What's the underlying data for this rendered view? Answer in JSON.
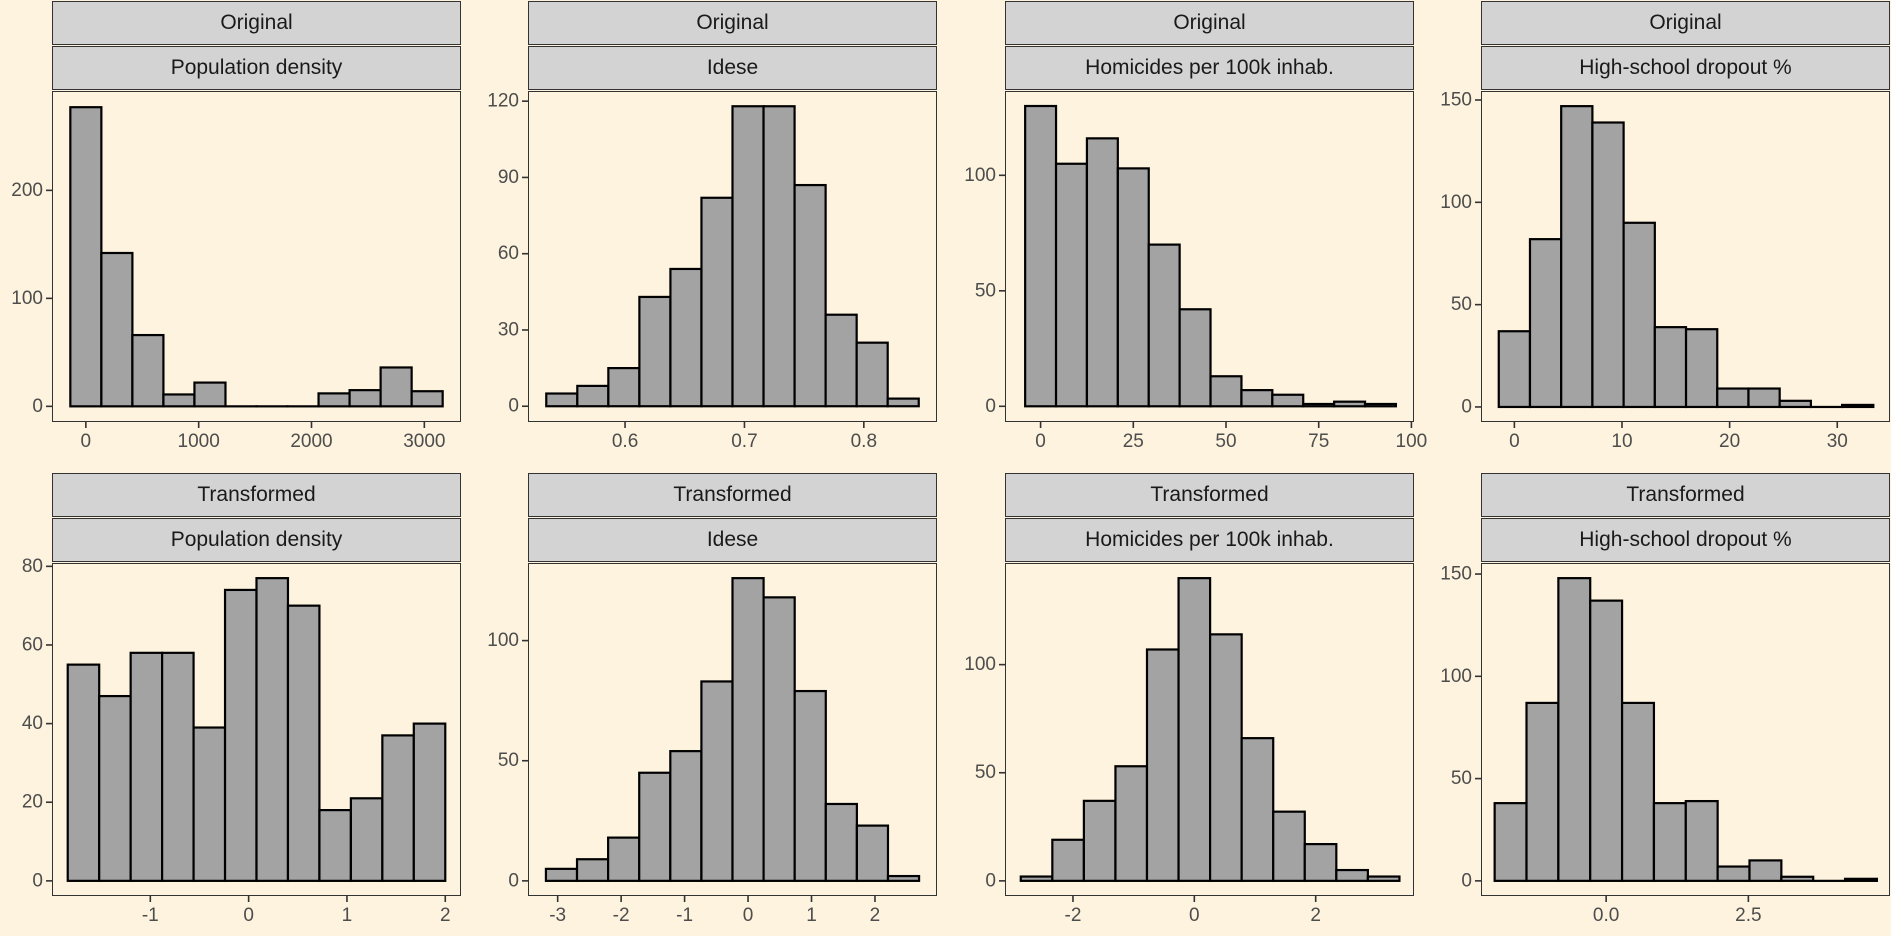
{
  "theme": {
    "background": "#fdf3de",
    "panel_border": "#333333",
    "strip_fill": "#d3d3d3",
    "bar_fill": "#a3a3a3",
    "bar_stroke": "#000000",
    "tick_text": "#4d4d4d"
  },
  "chart_data": [
    {
      "type": "bar",
      "strip_top": "Original",
      "strip_bottom": "Population density",
      "bin_width": 275,
      "bin_centers": [
        0,
        275,
        550,
        825,
        1100,
        1375,
        1650,
        1925,
        2200,
        2475,
        2750,
        3025
      ],
      "values": [
        277,
        142,
        66,
        11,
        22,
        0,
        0,
        0,
        12,
        15,
        36,
        14
      ],
      "xlim": [
        -300,
        3325
      ],
      "ylim": [
        -14.5,
        292
      ],
      "xticks": [
        0,
        1000,
        2000,
        3000
      ],
      "xtick_labels": [
        "0",
        "1000",
        "2000",
        "3000"
      ],
      "yticks": [
        0,
        100,
        200
      ],
      "ytick_labels": [
        "0",
        "100",
        "200"
      ]
    },
    {
      "type": "bar",
      "strip_top": "Original",
      "strip_bottom": "Idese",
      "bin_width": 0.026,
      "bin_centers": [
        0.547,
        0.573,
        0.599,
        0.625,
        0.651,
        0.677,
        0.703,
        0.729,
        0.755,
        0.781,
        0.807,
        0.833
      ],
      "values": [
        5,
        8,
        15,
        43,
        54,
        82,
        118,
        118,
        87,
        36,
        25,
        3
      ],
      "xlim": [
        0.5187,
        0.8613
      ],
      "ylim": [
        -6.2,
        124
      ],
      "xticks": [
        0.6,
        0.7,
        0.8
      ],
      "xtick_labels": [
        "0.6",
        "0.7",
        "0.8"
      ],
      "yticks": [
        0,
        30,
        60,
        90,
        120
      ],
      "ytick_labels": [
        "0",
        "30",
        "60",
        "90",
        "120"
      ]
    },
    {
      "type": "bar",
      "strip_top": "Original",
      "strip_bottom": "Homicides per 100k inhab.",
      "bin_width": 8.33,
      "bin_centers": [
        0,
        8.33,
        16.66,
        25,
        33.33,
        41.66,
        50,
        58.33,
        66.66,
        75,
        83.33,
        91.66
      ],
      "values": [
        130,
        105,
        116,
        103,
        70,
        42,
        13,
        7,
        5,
        1,
        2,
        1
      ],
      "xlim": [
        -9.6,
        100.7
      ],
      "ylim": [
        -6.8,
        136.5
      ],
      "xticks": [
        0,
        25,
        50,
        75,
        100
      ],
      "xtick_labels": [
        "0",
        "25",
        "50",
        "75",
        "100"
      ],
      "yticks": [
        0,
        50,
        100
      ],
      "ytick_labels": [
        "0",
        "50",
        "100"
      ]
    },
    {
      "type": "bar",
      "strip_top": "Original",
      "strip_bottom": "High-school dropout %",
      "bin_width": 2.9,
      "bin_centers": [
        0,
        2.9,
        5.8,
        8.7,
        11.6,
        14.5,
        17.4,
        20.3,
        23.2,
        26.1,
        29,
        31.9
      ],
      "values": [
        37,
        82,
        147,
        139,
        90,
        39,
        38,
        9,
        9,
        3,
        0,
        1
      ],
      "xlim": [
        -3.1,
        34.9
      ],
      "ylim": [
        -7.35,
        154.4
      ],
      "xticks": [
        0,
        10,
        20,
        30
      ],
      "xtick_labels": [
        "0",
        "10",
        "20",
        "30"
      ],
      "yticks": [
        0,
        50,
        100,
        150
      ],
      "ytick_labels": [
        "0",
        "50",
        "100",
        "150"
      ]
    },
    {
      "type": "bar",
      "strip_top": "Transformed",
      "strip_bottom": "Population density",
      "bin_width": 0.32,
      "bin_centers": [
        -1.68,
        -1.36,
        -1.04,
        -0.72,
        -0.4,
        -0.08,
        0.24,
        0.56,
        0.88,
        1.2,
        1.52,
        1.84
      ],
      "values": [
        55,
        47,
        58,
        58,
        39,
        74,
        77,
        70,
        18,
        21,
        37,
        40
      ],
      "xlim": [
        -2.0,
        2.16
      ],
      "ylim": [
        -3.85,
        80.85
      ],
      "xticks": [
        -1,
        0,
        1,
        2
      ],
      "xtick_labels": [
        "-1",
        "0",
        "1",
        "2"
      ],
      "yticks": [
        0,
        20,
        40,
        60,
        80
      ],
      "ytick_labels": [
        "0",
        "20",
        "40",
        "60",
        "80"
      ]
    },
    {
      "type": "bar",
      "strip_top": "Transformed",
      "strip_bottom": "Idese",
      "bin_width": 0.49,
      "bin_centers": [
        -2.94,
        -2.45,
        -1.96,
        -1.47,
        -0.98,
        -0.49,
        0,
        0.49,
        0.98,
        1.47,
        1.96,
        2.45
      ],
      "values": [
        5,
        9,
        18,
        45,
        54,
        83,
        126,
        118,
        79,
        32,
        23,
        2
      ],
      "xlim": [
        -3.4675,
        2.9775
      ],
      "ylim": [
        -6.3,
        132.3
      ],
      "xticks": [
        -3,
        -2,
        -1,
        0,
        1,
        2
      ],
      "xtick_labels": [
        "-3",
        "-2",
        "-1",
        "0",
        "1",
        "2"
      ],
      "yticks": [
        0,
        50,
        100
      ],
      "ytick_labels": [
        "0",
        "50",
        "100"
      ]
    },
    {
      "type": "bar",
      "strip_top": "Transformed",
      "strip_bottom": "Homicides per 100k inhab.",
      "bin_width": 0.52,
      "bin_centers": [
        -2.6,
        -2.08,
        -1.56,
        -1.04,
        -0.52,
        0,
        0.52,
        1.04,
        1.56,
        2.08,
        2.6,
        3.12
      ],
      "values": [
        2,
        19,
        37,
        53,
        107,
        140,
        114,
        66,
        32,
        17,
        5,
        2
      ],
      "xlim": [
        -3.12,
        3.62
      ],
      "ylim": [
        -7.0,
        147.0
      ],
      "xticks": [
        -2,
        0,
        2
      ],
      "xtick_labels": [
        "-2",
        "0",
        "2"
      ],
      "yticks": [
        0,
        50,
        100
      ],
      "ytick_labels": [
        "0",
        "50",
        "100"
      ]
    },
    {
      "type": "bar",
      "strip_top": "Transformed",
      "strip_bottom": "High-school dropout %",
      "bin_width": 0.56,
      "bin_centers": [
        -1.68,
        -1.12,
        -0.56,
        0,
        0.56,
        1.12,
        1.68,
        2.24,
        2.8,
        3.36,
        3.92,
        4.48
      ],
      "values": [
        38,
        87,
        148,
        137,
        87,
        38,
        39,
        7,
        10,
        2,
        0,
        1
      ],
      "xlim": [
        -2.2,
        4.99
      ],
      "ylim": [
        -7.4,
        155.4
      ],
      "xticks": [
        0,
        2.5
      ],
      "xtick_labels": [
        "0.0",
        "2.5"
      ],
      "yticks": [
        0,
        50,
        100,
        150
      ],
      "ytick_labels": [
        "0",
        "50",
        "100",
        "150"
      ]
    }
  ]
}
